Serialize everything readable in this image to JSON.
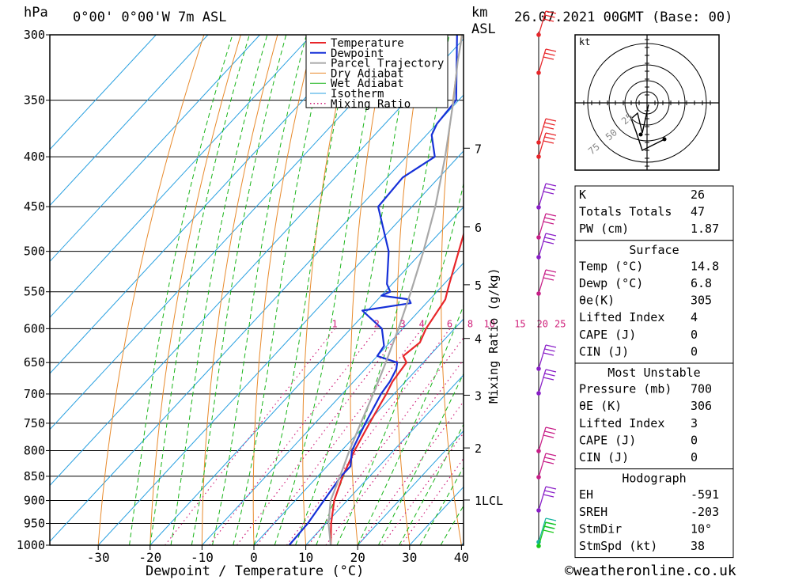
{
  "header": {
    "left_unit": "hPa",
    "location": "0°00' 0°00'W 7m ASL",
    "km_label": "km",
    "asl_label": "ASL",
    "datetime": "26.07.2021 00GMT (Base: 00)"
  },
  "chart_data": {
    "type": "line",
    "title": "",
    "xlabel": "Dewpoint / Temperature (°C)",
    "ylabel": "hPa",
    "xlim": [
      -40,
      40
    ],
    "ylim": [
      1000,
      300
    ],
    "x_ticks": [
      "-30",
      "-20",
      "-10",
      "0",
      "10",
      "20",
      "30",
      "40"
    ],
    "pressure_levels": [
      300,
      350,
      400,
      450,
      500,
      550,
      600,
      650,
      700,
      750,
      800,
      850,
      900,
      950,
      1000
    ],
    "pressure_labels": [
      "300",
      "350",
      "400",
      "450",
      "500",
      "550",
      "600",
      "650",
      "700",
      "750",
      "800",
      "850",
      "900",
      "950",
      "1000"
    ],
    "km_ticks": [
      {
        "p": 392,
        "label": "7"
      },
      {
        "p": 472,
        "label": "6"
      },
      {
        "p": 541,
        "label": "5"
      },
      {
        "p": 614,
        "label": "4"
      },
      {
        "p": 702,
        "label": "3"
      },
      {
        "p": 795,
        "label": "2"
      },
      {
        "p": 899,
        "label": "1LCL"
      }
    ],
    "mixing_ratio_label": "Mixing Ratio (g/kg)",
    "mixing_ratios": [
      "1",
      "2",
      "3",
      "4",
      "6",
      "8",
      "10",
      "15",
      "20",
      "25"
    ],
    "legend": [
      "Temperature",
      "Dewpoint",
      "Parcel Trajectory",
      "Dry Adiabat",
      "Wet Adiabat",
      "Isotherm",
      "Mixing Ratio"
    ],
    "legend_position": "top-right",
    "series": [
      {
        "name": "Temperature",
        "color": "#e8262a",
        "points": [
          [
            1000,
            14.8
          ],
          [
            950,
            11
          ],
          [
            900,
            7.5
          ],
          [
            850,
            4.8
          ],
          [
            800,
            2.5
          ],
          [
            750,
            0.5
          ],
          [
            700,
            -1.5
          ],
          [
            680,
            -2.5
          ],
          [
            650,
            -3.2
          ],
          [
            640,
            -5
          ],
          [
            620,
            -4.2
          ],
          [
            600,
            -5.5
          ],
          [
            560,
            -7
          ],
          [
            550,
            -8
          ],
          [
            540,
            -9
          ],
          [
            500,
            -13
          ],
          [
            450,
            -18.5
          ],
          [
            430,
            -20
          ],
          [
            400,
            -24
          ],
          [
            380,
            -27.5
          ],
          [
            350,
            -33
          ],
          [
            300,
            -43
          ]
        ]
      },
      {
        "name": "Dewpoint",
        "color": "#1630d8",
        "points": [
          [
            1000,
            6.8
          ],
          [
            950,
            6.5
          ],
          [
            900,
            5.5
          ],
          [
            850,
            4.5
          ],
          [
            830,
            4.5
          ],
          [
            800,
            2
          ],
          [
            750,
            -0.3
          ],
          [
            700,
            -2.5
          ],
          [
            680,
            -3
          ],
          [
            660,
            -4
          ],
          [
            650,
            -5
          ],
          [
            640,
            -10
          ],
          [
            625,
            -10.5
          ],
          [
            600,
            -14
          ],
          [
            575,
            -21
          ],
          [
            565,
            -13
          ],
          [
            560,
            -14
          ],
          [
            555,
            -20
          ],
          [
            550,
            -19
          ],
          [
            540,
            -21
          ],
          [
            500,
            -26.5
          ],
          [
            450,
            -36.5
          ],
          [
            420,
            -37
          ],
          [
            400,
            -34.5
          ],
          [
            380,
            -39
          ],
          [
            370,
            -40
          ],
          [
            350,
            -40.5
          ],
          [
            300,
            -52
          ]
        ]
      },
      {
        "name": "Parcel Trajectory",
        "color": "#a8a8a8",
        "points": [
          [
            1000,
            14.8
          ],
          [
            950,
            10.5
          ],
          [
            900,
            6.8
          ],
          [
            850,
            4.3
          ],
          [
            800,
            1.5
          ],
          [
            750,
            -1.2
          ],
          [
            700,
            -4
          ],
          [
            650,
            -7.2
          ],
          [
            600,
            -10.8
          ],
          [
            550,
            -15
          ],
          [
            500,
            -19.8
          ],
          [
            450,
            -25.5
          ],
          [
            400,
            -32.5
          ],
          [
            350,
            -41
          ],
          [
            320,
            -47
          ],
          [
            300,
            -51
          ]
        ]
      }
    ]
  },
  "hodograph": {
    "unit": "kt",
    "rings": [
      "25",
      "50",
      "75"
    ]
  },
  "indices": {
    "block1": [
      {
        "label": "K",
        "value": "26"
      },
      {
        "label": "Totals Totals",
        "value": "47"
      },
      {
        "label": "PW (cm)",
        "value": "1.87"
      }
    ],
    "surface": {
      "title": "Surface",
      "rows": [
        {
          "label": "Temp (°C)",
          "value": "14.8"
        },
        {
          "label": "Dewp (°C)",
          "value": "6.8"
        },
        {
          "label": "θe(K)",
          "value": "305"
        },
        {
          "label": "Lifted Index",
          "value": "4"
        },
        {
          "label": "CAPE (J)",
          "value": "0"
        },
        {
          "label": "CIN (J)",
          "value": "0"
        }
      ]
    },
    "most_unstable": {
      "title": "Most Unstable",
      "rows": [
        {
          "label": "Pressure (mb)",
          "value": "700"
        },
        {
          "label": "θE (K)",
          "value": "306"
        },
        {
          "label": "Lifted Index",
          "value": "3"
        },
        {
          "label": "CAPE (J)",
          "value": "0"
        },
        {
          "label": "CIN (J)",
          "value": "0"
        }
      ]
    },
    "hodograph_block": {
      "title": "Hodograph",
      "rows": [
        {
          "label": "EH",
          "value": "-591"
        },
        {
          "label": "SREH",
          "value": "-203"
        },
        {
          "label": "StmDir",
          "value": "10°"
        },
        {
          "label": "StmSpd (kt)",
          "value": "38"
        }
      ]
    }
  },
  "footer": {
    "copyright": "©weatheronline.co.uk"
  },
  "colors": {
    "temperature": "#e8262a",
    "dewpoint": "#1630d8",
    "parcel": "#a8a8a8",
    "dry_adiabat": "#e88a2c",
    "wet_adiabat": "#18b418",
    "isotherm": "#28a0e0",
    "mixing_ratio": "#d0207a"
  }
}
